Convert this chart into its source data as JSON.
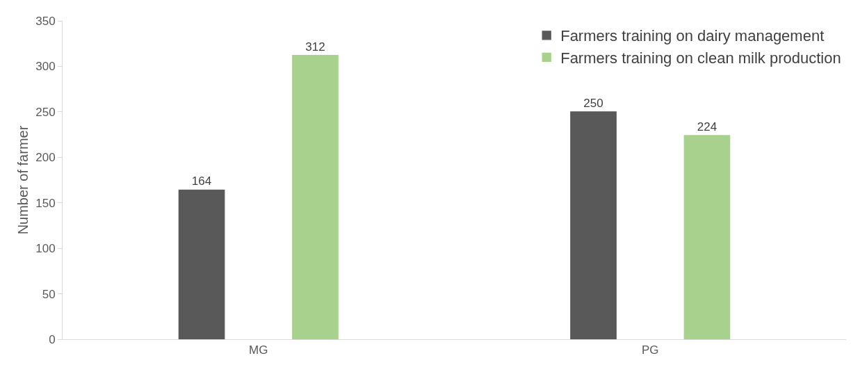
{
  "chart_data": {
    "type": "bar",
    "ylabel": "Number of farmer",
    "categories": [
      "MG",
      "PG"
    ],
    "series": [
      {
        "name": "Farmers training on dairy management",
        "color": "#595959",
        "values": [
          164,
          250
        ]
      },
      {
        "name": "Farmers training on clean milk production",
        "color": "#a9d18e",
        "values": [
          312,
          224
        ]
      }
    ],
    "ylim": [
      0,
      350
    ],
    "yticks": [
      0,
      50,
      100,
      150,
      200,
      250,
      300,
      350
    ],
    "grid": false,
    "legend": "top right",
    "data_labels": true
  }
}
